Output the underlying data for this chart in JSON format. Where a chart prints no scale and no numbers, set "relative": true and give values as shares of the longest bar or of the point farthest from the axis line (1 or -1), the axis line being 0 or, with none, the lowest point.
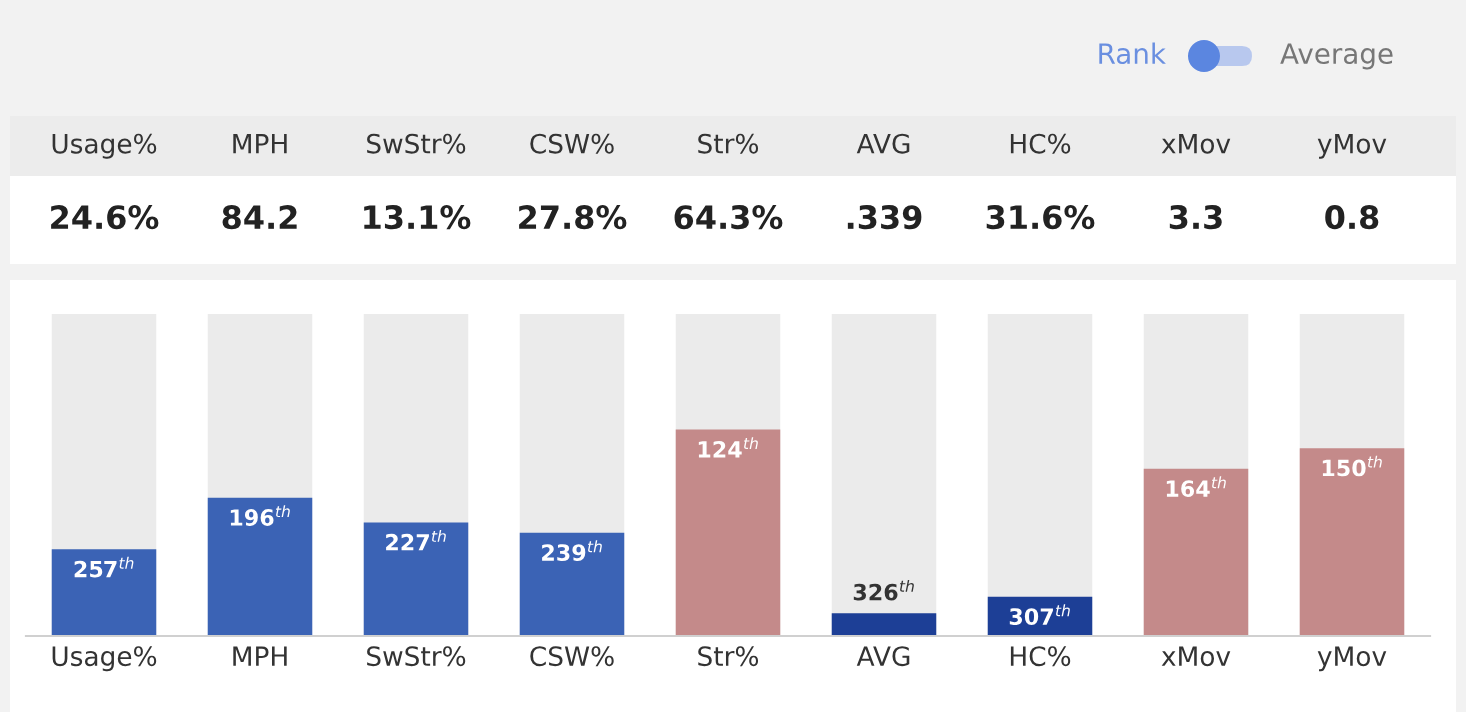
{
  "chart_data": [
    {
      "type": "other",
      "annotations": [
        "Rank",
        "Average"
      ]
    },
    {
      "type": "other",
      "categories": [
        "Usage%",
        "MPH",
        "SwStr%",
        "CSW%",
        "Str%",
        "AVG",
        "HC%",
        "xMov",
        "yMov"
      ],
      "annotations": [
        "24.6%",
        "84.2",
        "13.1%",
        "27.8%",
        "64.3%",
        ".339",
        "31.6%",
        "3.3",
        "0.8"
      ]
    },
    {
      "type": "bar",
      "relative": true,
      "tick_labels": "x",
      "categories": [
        "Usage%",
        "MPH",
        "SwStr%",
        "CSW%",
        "Str%",
        "AVG",
        "HC%",
        "xMov",
        "yMov"
      ],
      "series": [
        {
          "colors": [
            "#3b63b5",
            "#3b63b5",
            "#3b63b5",
            "#3b63b5",
            "#c48a8a",
            "#1d3f96",
            "#1d3f96",
            "#c48a8a",
            "#c48a8a"
          ],
          "values": [
            0.42,
            0.67,
            0.55,
            0.5,
            1,
            0.11,
            0.19,
            0.81,
            0.91
          ]
        }
      ],
      "annotations": [
        {
          "text": "257$^{th}$",
          "x": "Usage%",
          "y": 0.42
        },
        {
          "text": "196$^{th}$",
          "x": "MPH",
          "y": 0.67
        },
        {
          "text": "227$^{th}$",
          "x": "SwStr%",
          "y": 0.55
        },
        {
          "text": "239$^{th}$",
          "x": "CSW%",
          "y": 0.5
        },
        {
          "text": "124$^{th}$",
          "x": "Str%",
          "y": 1
        },
        {
          "text": "326$^{th}$",
          "x": "AVG",
          "y": 0.11
        },
        {
          "text": "307$^{th}$",
          "x": "HC%",
          "y": 0.19
        },
        {
          "text": "164$^{th}$",
          "x": "xMov",
          "y": 0.81
        },
        {
          "text": "150$^{th}$",
          "x": "yMov",
          "y": 0.91
        }
      ]
    }
  ]
}
